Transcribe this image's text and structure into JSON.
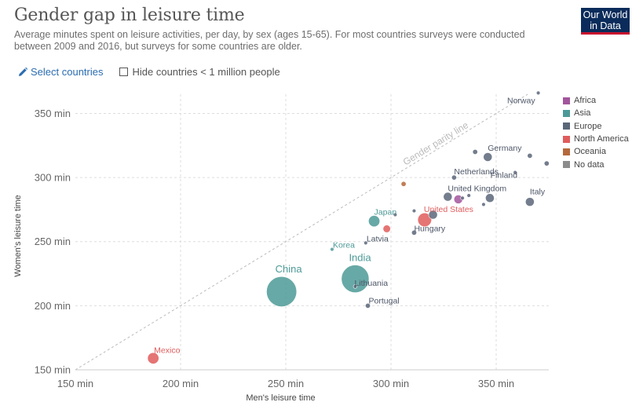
{
  "header": {
    "title": "Gender gap in leisure time",
    "subtitle": "Average minutes spent on leisure activities, per day, by sex (ages 15-65). For most countries surveys were conducted between 2009 and 2016, but surveys for some countries are older.",
    "logo_line1": "Our World",
    "logo_line2": "in Data"
  },
  "controls": {
    "select_label": "Select countries",
    "hide_label": "Hide countries < 1 million people"
  },
  "colors": {
    "Africa": "#a2559c",
    "Asia": "#4c9a97",
    "Europe": "#5b6679",
    "North America": "#e05c5c",
    "Oceania": "#b5683b",
    "No data": "#8c8c8c"
  },
  "legend": [
    {
      "label": "Africa",
      "color": "#a2559c"
    },
    {
      "label": "Asia",
      "color": "#4c9a97"
    },
    {
      "label": "Europe",
      "color": "#5b6679"
    },
    {
      "label": "North America",
      "color": "#e05c5c"
    },
    {
      "label": "Oceania",
      "color": "#b5683b"
    },
    {
      "label": "No data",
      "color": "#8c8c8c"
    }
  ],
  "chart_data": {
    "type": "scatter",
    "xlabel": "Men's leisure time",
    "ylabel": "Women's leisure time",
    "xlim": [
      150,
      375
    ],
    "ylim": [
      150,
      365
    ],
    "xticks": [
      150,
      200,
      250,
      300,
      350
    ],
    "yticks": [
      150,
      200,
      250,
      300,
      350
    ],
    "xtick_labels": [
      "150 min",
      "200 min",
      "250 min",
      "300 min",
      "350 min"
    ],
    "ytick_labels": [
      "150 min",
      "200 min",
      "250 min",
      "300 min",
      "350 min"
    ],
    "parity_label": "Gender parity line",
    "grid": true,
    "points": [
      {
        "name": "Norway",
        "x": 370,
        "y": 366,
        "region": "Europe",
        "labeled": true,
        "size": 1.5
      },
      {
        "name": "Germany",
        "x": 346,
        "y": 316,
        "region": "Europe",
        "labeled": true,
        "size": 3.5
      },
      {
        "name": "Finland",
        "x": 359,
        "y": 304,
        "region": "Europe",
        "labeled": true,
        "size": 1.5
      },
      {
        "name": "Netherlands",
        "x": 330,
        "y": 300,
        "region": "Europe",
        "labeled": true,
        "size": 2
      },
      {
        "name": "United Kingdom",
        "x": 327,
        "y": 285,
        "region": "Europe",
        "labeled": true,
        "size": 3.5
      },
      {
        "name": "Italy",
        "x": 366,
        "y": 281,
        "region": "Europe",
        "labeled": true,
        "size": 3.5
      },
      {
        "name": "United States",
        "x": 316,
        "y": 267,
        "region": "North America",
        "labeled": true,
        "size": 5.5
      },
      {
        "name": "Japan",
        "x": 292,
        "y": 266,
        "region": "Asia",
        "labeled": true,
        "size": 4.5
      },
      {
        "name": "Hungary",
        "x": 311,
        "y": 257,
        "region": "Europe",
        "labeled": true,
        "size": 2
      },
      {
        "name": "Latvia",
        "x": 288,
        "y": 249,
        "region": "Europe",
        "labeled": true,
        "size": 1.5
      },
      {
        "name": "Korea",
        "x": 272,
        "y": 244,
        "region": "Asia",
        "labeled": true,
        "size": 1.5
      },
      {
        "name": "India",
        "x": 283,
        "y": 221,
        "region": "Asia",
        "labeled": true,
        "size": 11
      },
      {
        "name": "Lithuania",
        "x": 283,
        "y": 215,
        "region": "Europe",
        "labeled": true,
        "size": 1.5
      },
      {
        "name": "China",
        "x": 248,
        "y": 211,
        "region": "Asia",
        "labeled": true,
        "size": 12
      },
      {
        "name": "Portugal",
        "x": 289,
        "y": 200,
        "region": "Europe",
        "labeled": true,
        "size": 2
      },
      {
        "name": "Mexico",
        "x": 187,
        "y": 159,
        "region": "North America",
        "labeled": true,
        "size": 4.5
      },
      {
        "name": "",
        "x": 340,
        "y": 320,
        "region": "Europe",
        "labeled": false,
        "size": 2
      },
      {
        "name": "",
        "x": 366,
        "y": 317,
        "region": "Europe",
        "labeled": false,
        "size": 2
      },
      {
        "name": "",
        "x": 374,
        "y": 311,
        "region": "Europe",
        "labeled": false,
        "size": 2
      },
      {
        "name": "",
        "x": 334,
        "y": 284,
        "region": "Europe",
        "labeled": false,
        "size": 1.5
      },
      {
        "name": "",
        "x": 337,
        "y": 286,
        "region": "Europe",
        "labeled": false,
        "size": 1.5
      },
      {
        "name": "",
        "x": 344,
        "y": 279,
        "region": "Europe",
        "labeled": false,
        "size": 1.5
      },
      {
        "name": "",
        "x": 347,
        "y": 284,
        "region": "Europe",
        "labeled": false,
        "size": 3.5
      },
      {
        "name": "",
        "x": 332,
        "y": 283,
        "region": "Africa",
        "labeled": false,
        "size": 3.5
      },
      {
        "name": "",
        "x": 306,
        "y": 295,
        "region": "Oceania",
        "labeled": false,
        "size": 2
      },
      {
        "name": "",
        "x": 298,
        "y": 260,
        "region": "North America",
        "labeled": false,
        "size": 3
      },
      {
        "name": "",
        "x": 311,
        "y": 274,
        "region": "Europe",
        "labeled": false,
        "size": 1.5
      },
      {
        "name": "",
        "x": 320,
        "y": 271,
        "region": "Europe",
        "labeled": false,
        "size": 3.5
      },
      {
        "name": "",
        "x": 302,
        "y": 271,
        "region": "Europe",
        "labeled": false,
        "size": 1.5
      }
    ]
  }
}
